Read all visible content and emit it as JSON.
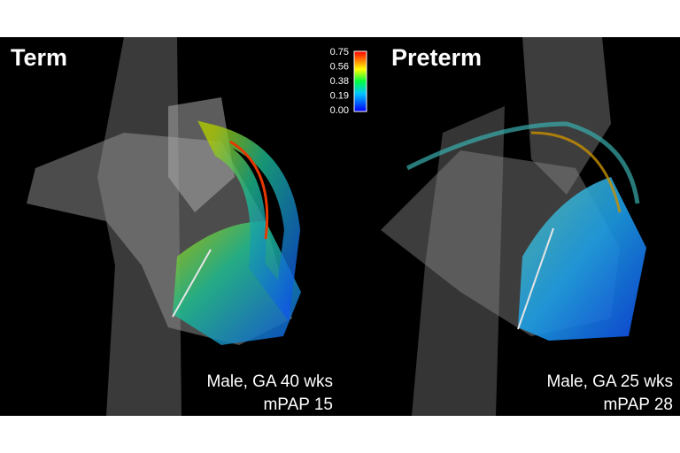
{
  "panels": [
    {
      "title": "Term",
      "caption": [
        "Male, GA 40 wks",
        "mPAP 15"
      ]
    },
    {
      "title": "Preterm",
      "caption": [
        "Male, GA 25 wks",
        "mPAP 28"
      ]
    }
  ],
  "colorbar": {
    "ticks": [
      "0.75",
      "0.56",
      "0.38",
      "0.19",
      "0.00"
    ]
  }
}
